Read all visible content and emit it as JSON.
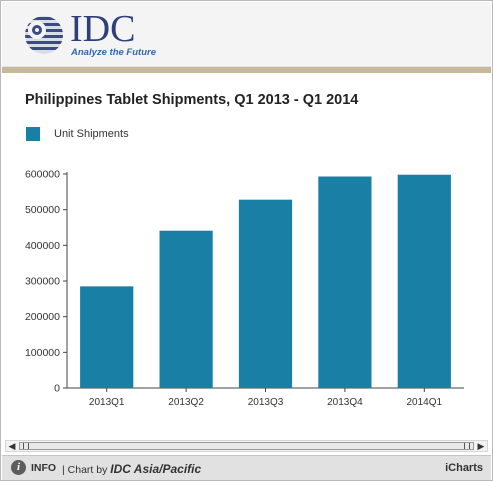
{
  "header": {
    "logo_text": "IDC",
    "tagline": "Analyze the Future"
  },
  "chart_data": {
    "type": "bar",
    "title": "Philippines Tablet Shipments, Q1 2013 - Q1 2014",
    "categories": [
      "2013Q1",
      "2013Q2",
      "2013Q3",
      "2013Q4",
      "2014Q1"
    ],
    "series": [
      {
        "name": "Unit Shipments",
        "values": [
          285000,
          441000,
          528000,
          593000,
          598000
        ],
        "color": "#1a7fa5"
      }
    ],
    "ylim": [
      0,
      600000
    ],
    "yticks": [
      0,
      100000,
      200000,
      300000,
      400000,
      500000,
      600000
    ],
    "ytick_labels": [
      "0",
      "100000",
      "200000",
      "300000",
      "400000",
      "500000",
      "600000"
    ],
    "xlabel": "",
    "ylabel": "",
    "grid": false,
    "legend_position": "top-left"
  },
  "footer": {
    "info_icon": "info-icon",
    "info_label": "INFO",
    "chart_by_prefix": "| Chart by ",
    "chart_by_source": "IDC Asia/Pacific",
    "brand": "iCharts"
  },
  "scrollbar": {
    "left_arrow": "◀",
    "right_arrow": "▶"
  }
}
